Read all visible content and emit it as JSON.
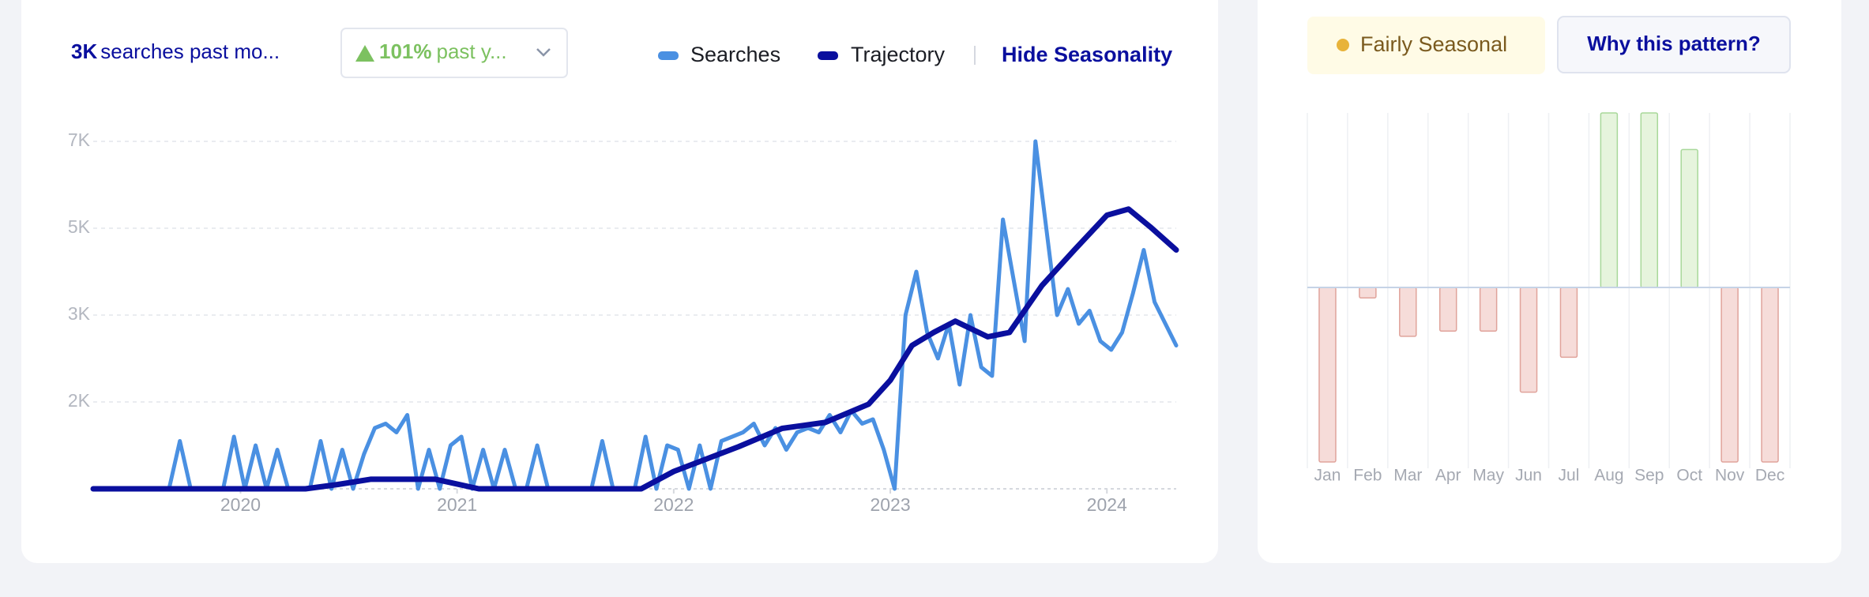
{
  "header": {
    "searches_value": "3K",
    "searches_text": "searches past mo...",
    "growth_value": "101%",
    "growth_text": "past y...",
    "hide_seasonality": "Hide Seasonality"
  },
  "trend_chart": {
    "type": "line",
    "scale": "tick-spaced",
    "xlim": [
      2019.32,
      2024.32
    ],
    "xticks": [
      2020,
      2021,
      2022,
      2023,
      2024
    ],
    "ylim": [
      0,
      7000
    ],
    "yticks": [
      {
        "value": 2000,
        "label": "2K"
      },
      {
        "value": 3000,
        "label": "3K"
      },
      {
        "value": 5000,
        "label": "5K"
      },
      {
        "value": 7000,
        "label": "7K"
      }
    ],
    "grid": true,
    "series": [
      {
        "name": "Searches",
        "color": "#4a90e2",
        "x": [
          2019.32,
          2019.37,
          2019.42,
          2019.47,
          2019.52,
          2019.57,
          2019.62,
          2019.67,
          2019.72,
          2019.77,
          2019.82,
          2019.87,
          2019.92,
          2019.97,
          2020.02,
          2020.07,
          2020.12,
          2020.17,
          2020.22,
          2020.27,
          2020.32,
          2020.37,
          2020.42,
          2020.47,
          2020.52,
          2020.57,
          2020.62,
          2020.67,
          2020.72,
          2020.77,
          2020.82,
          2020.87,
          2020.92,
          2020.97,
          2021.02,
          2021.07,
          2021.12,
          2021.17,
          2021.22,
          2021.27,
          2021.32,
          2021.37,
          2021.42,
          2021.47,
          2021.52,
          2021.57,
          2021.62,
          2021.67,
          2021.72,
          2021.77,
          2021.82,
          2021.87,
          2021.92,
          2021.97,
          2022.02,
          2022.07,
          2022.12,
          2022.17,
          2022.22,
          2022.27,
          2022.32,
          2022.37,
          2022.42,
          2022.47,
          2022.52,
          2022.57,
          2022.62,
          2022.67,
          2022.72,
          2022.77,
          2022.82,
          2022.87,
          2022.92,
          2022.97,
          2023.02,
          2023.07,
          2023.12,
          2023.17,
          2023.22,
          2023.27,
          2023.32,
          2023.37,
          2023.42,
          2023.47,
          2023.52,
          2023.57,
          2023.62,
          2023.67,
          2023.72,
          2023.77,
          2023.82,
          2023.87,
          2023.92,
          2023.97,
          2024.02,
          2024.07,
          2024.12,
          2024.17,
          2024.22,
          2024.27,
          2024.32
        ],
        "values": [
          0,
          0,
          0,
          0,
          0,
          0,
          0,
          0,
          1100,
          0,
          0,
          0,
          0,
          1200,
          0,
          1000,
          0,
          900,
          0,
          0,
          0,
          1100,
          0,
          900,
          0,
          800,
          1400,
          1500,
          1300,
          1700,
          0,
          900,
          0,
          1000,
          1200,
          0,
          900,
          0,
          900,
          0,
          0,
          1000,
          0,
          0,
          0,
          0,
          0,
          1100,
          0,
          0,
          0,
          1200,
          0,
          1000,
          900,
          0,
          1000,
          0,
          1100,
          1200,
          1300,
          1500,
          1000,
          1400,
          900,
          1300,
          1400,
          1300,
          1700,
          1300,
          1800,
          1500,
          1600,
          900,
          0,
          3000,
          4000,
          2800,
          2500,
          2900,
          2200,
          3000,
          2400,
          2300,
          5200,
          3800,
          2700,
          7000,
          5000,
          3000,
          3600,
          2900,
          3100,
          2700,
          2600,
          2800,
          3500,
          4500,
          3300,
          2900,
          2650
        ]
      },
      {
        "name": "Trajectory",
        "color": "#0a0f9e",
        "x": [
          2019.32,
          2020.3,
          2020.45,
          2020.6,
          2020.9,
          2021.1,
          2021.85,
          2022.0,
          2022.3,
          2022.5,
          2022.7,
          2022.9,
          2023.0,
          2023.1,
          2023.2,
          2023.3,
          2023.45,
          2023.55,
          2023.7,
          2023.85,
          2024.0,
          2024.1,
          2024.2,
          2024.32
        ],
        "values": [
          0,
          0,
          100,
          220,
          220,
          0,
          0,
          400,
          970,
          1390,
          1530,
          1950,
          2250,
          2650,
          2800,
          2930,
          2750,
          2800,
          3680,
          4500,
          5300,
          5440,
          5030,
          4500
        ]
      }
    ]
  },
  "seasonality": {
    "badge": "Fairly Seasonal",
    "button": "Why this pattern?",
    "chart": {
      "type": "bar",
      "categories": [
        "Jan",
        "Feb",
        "Mar",
        "Apr",
        "May",
        "Jun",
        "Jul",
        "Aug",
        "Sep",
        "Oct",
        "Nov",
        "Dec"
      ],
      "values": [
        -100,
        -6,
        -28,
        -25,
        -25,
        -60,
        -40,
        100,
        100,
        79,
        -100,
        -100
      ],
      "ylim": [
        -100,
        100
      ],
      "positive_color": "#e6f4dd",
      "negative_color": "#f6dcd9"
    }
  }
}
